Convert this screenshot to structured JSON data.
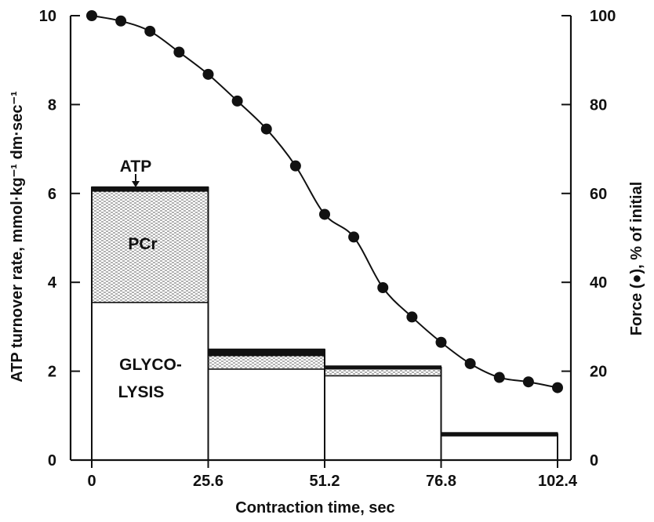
{
  "chart_data": {
    "type": "bar",
    "xlabel": "Contraction time, sec",
    "ylabel": "ATP turnover rate, mmol·kg⁻¹ dm·sec⁻¹",
    "y2label": "Force (●), % of initial",
    "xlim": [
      0,
      102.4
    ],
    "ylim": [
      0,
      10
    ],
    "y2lim": [
      0,
      100
    ],
    "x_ticks": [
      "0",
      "25.6",
      "51.2",
      "76.8",
      "102.4"
    ],
    "y_ticks": [
      "0",
      "2",
      "4",
      "6",
      "8",
      "10"
    ],
    "y2_ticks": [
      "0",
      "20",
      "40",
      "60",
      "80",
      "100"
    ],
    "intervals": [
      {
        "start": 0,
        "end": 25.6,
        "glycolysis": 3.55,
        "pcr": 2.5,
        "atp": 0.1
      },
      {
        "start": 25.6,
        "end": 51.2,
        "glycolysis": 2.05,
        "pcr": 0.3,
        "atp": 0.15
      },
      {
        "start": 51.2,
        "end": 76.8,
        "glycolysis": 1.9,
        "pcr": 0.15,
        "atp": 0.05
      },
      {
        "start": 76.8,
        "end": 102.4,
        "glycolysis": 0.55,
        "pcr": 0.0,
        "atp": 0.05
      }
    ],
    "force": {
      "x": [
        0,
        6.4,
        12.8,
        19.2,
        25.6,
        32,
        38.4,
        44.8,
        51.2,
        57.6,
        64,
        70.4,
        76.8,
        83.2,
        89.6,
        96,
        102.4
      ],
      "y": [
        100,
        98.8,
        96.5,
        91.8,
        86.8,
        80.8,
        74.5,
        66.2,
        55.3,
        50.2,
        38.8,
        32.2,
        26.5,
        21.7,
        18.6,
        17.6,
        16.3
      ]
    },
    "annotations": {
      "atp": "ATP",
      "pcr": "PCr",
      "glycolysis_1": "GLYCO-",
      "glycolysis_2": "LYSIS"
    }
  }
}
